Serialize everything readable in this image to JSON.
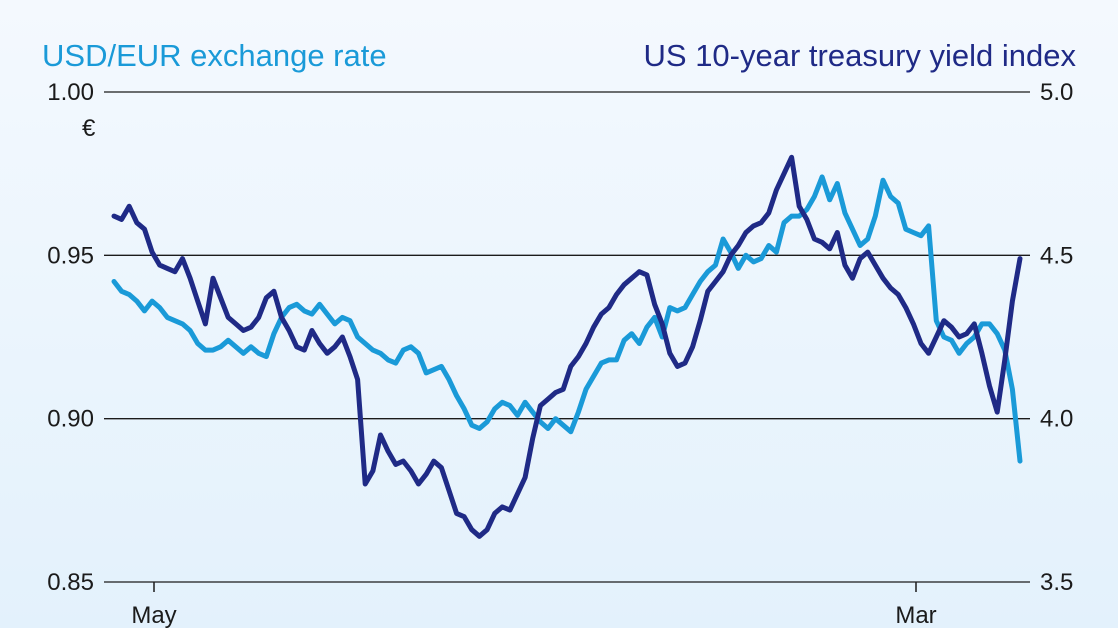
{
  "titles": {
    "left": "USD/EUR exchange rate",
    "right": "US 10-year treasury yield index"
  },
  "colors": {
    "usd_eur": "#1a9ad8",
    "treasury": "#1f2a86",
    "grid": "#1b1b1b",
    "text": "#1b1b1b"
  },
  "chart_data": {
    "type": "line",
    "title": "",
    "xlabel": "",
    "x_ticks": [
      "May",
      "Mar"
    ],
    "y_left": {
      "label": "USD/EUR exchange rate",
      "unit": "€",
      "ylim": [
        0.85,
        1.0
      ],
      "ticks": [
        "1.00",
        "0.95",
        "0.90",
        "0.85"
      ]
    },
    "y_right": {
      "label": "US 10-year treasury yield index",
      "ylim": [
        3.5,
        5.0
      ],
      "ticks": [
        "5.0",
        "4.5",
        "4.0",
        "3.5"
      ]
    },
    "grid": true,
    "series": [
      {
        "name": "USD/EUR exchange rate",
        "axis": "left",
        "values": [
          0.942,
          0.939,
          0.938,
          0.936,
          0.933,
          0.936,
          0.934,
          0.931,
          0.93,
          0.929,
          0.927,
          0.923,
          0.921,
          0.921,
          0.922,
          0.924,
          0.922,
          0.92,
          0.922,
          0.92,
          0.919,
          0.926,
          0.931,
          0.934,
          0.935,
          0.933,
          0.932,
          0.935,
          0.932,
          0.929,
          0.931,
          0.93,
          0.925,
          0.923,
          0.921,
          0.92,
          0.918,
          0.917,
          0.921,
          0.922,
          0.92,
          0.914,
          0.915,
          0.916,
          0.912,
          0.907,
          0.903,
          0.898,
          0.897,
          0.899,
          0.903,
          0.905,
          0.904,
          0.901,
          0.905,
          0.902,
          0.899,
          0.897,
          0.9,
          0.898,
          0.896,
          0.902,
          0.909,
          0.913,
          0.917,
          0.918,
          0.918,
          0.924,
          0.926,
          0.923,
          0.928,
          0.931,
          0.925,
          0.934,
          0.933,
          0.934,
          0.938,
          0.942,
          0.945,
          0.947,
          0.955,
          0.951,
          0.946,
          0.95,
          0.948,
          0.949,
          0.953,
          0.951,
          0.96,
          0.962,
          0.962,
          0.964,
          0.968,
          0.974,
          0.967,
          0.972,
          0.963,
          0.958,
          0.953,
          0.955,
          0.962,
          0.973,
          0.968,
          0.966,
          0.958,
          0.957,
          0.956,
          0.959,
          0.93,
          0.925,
          0.924,
          0.92,
          0.923,
          0.925,
          0.929,
          0.929,
          0.926,
          0.921,
          0.909,
          0.887
        ]
      },
      {
        "name": "US 10-year treasury yield index",
        "axis": "right",
        "values": [
          4.62,
          4.61,
          4.65,
          4.6,
          4.58,
          4.51,
          4.47,
          4.46,
          4.45,
          4.49,
          4.43,
          4.36,
          4.29,
          4.43,
          4.37,
          4.31,
          4.29,
          4.27,
          4.28,
          4.31,
          4.37,
          4.39,
          4.31,
          4.27,
          4.22,
          4.21,
          4.27,
          4.23,
          4.2,
          4.22,
          4.25,
          4.19,
          4.12,
          3.8,
          3.84,
          3.95,
          3.9,
          3.86,
          3.87,
          3.84,
          3.8,
          3.83,
          3.87,
          3.85,
          3.78,
          3.71,
          3.7,
          3.66,
          3.64,
          3.66,
          3.71,
          3.73,
          3.72,
          3.77,
          3.82,
          3.94,
          4.04,
          4.06,
          4.08,
          4.09,
          4.16,
          4.19,
          4.23,
          4.28,
          4.32,
          4.34,
          4.38,
          4.41,
          4.43,
          4.45,
          4.44,
          4.35,
          4.29,
          4.2,
          4.16,
          4.17,
          4.22,
          4.3,
          4.39,
          4.42,
          4.45,
          4.5,
          4.53,
          4.57,
          4.59,
          4.6,
          4.63,
          4.7,
          4.75,
          4.8,
          4.65,
          4.61,
          4.55,
          4.54,
          4.52,
          4.57,
          4.47,
          4.43,
          4.49,
          4.51,
          4.47,
          4.43,
          4.4,
          4.38,
          4.34,
          4.29,
          4.23,
          4.2,
          4.25,
          4.3,
          4.28,
          4.25,
          4.26,
          4.29,
          4.2,
          4.1,
          4.02,
          4.18,
          4.36,
          4.49
        ]
      }
    ]
  }
}
